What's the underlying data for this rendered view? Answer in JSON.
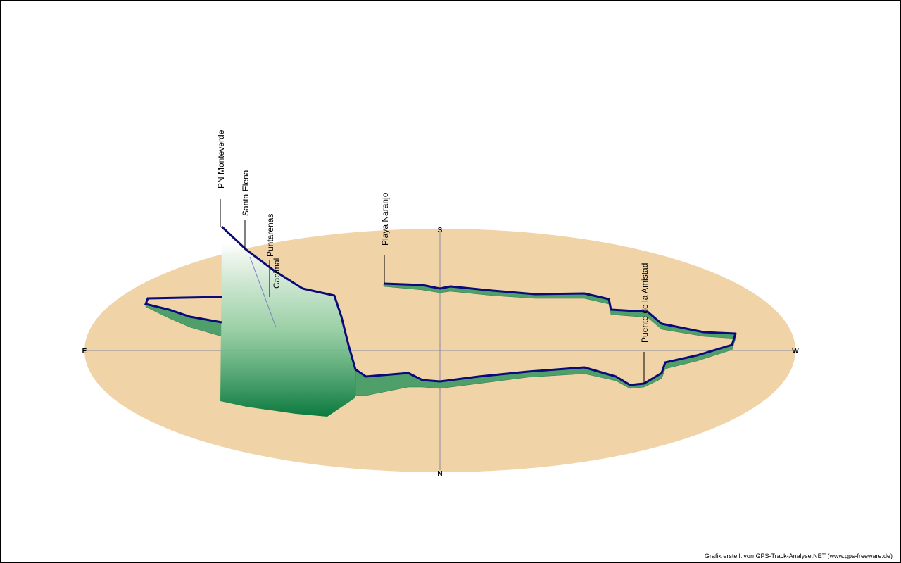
{
  "compass": {
    "east": "E",
    "south": "S",
    "west": "W",
    "north": "N"
  },
  "waypoints": [
    {
      "label": "PN Monteverde"
    },
    {
      "label": "Santa Elena"
    },
    {
      "label": "Puntarenas"
    },
    {
      "label": "Cacimal"
    },
    {
      "label": "Playa Naranjo"
    },
    {
      "label": "Puente de la Amistad"
    }
  ],
  "credit": "Grafik erstellt von GPS-Track-Analyse.NET (www.gps-freeware.de)"
}
